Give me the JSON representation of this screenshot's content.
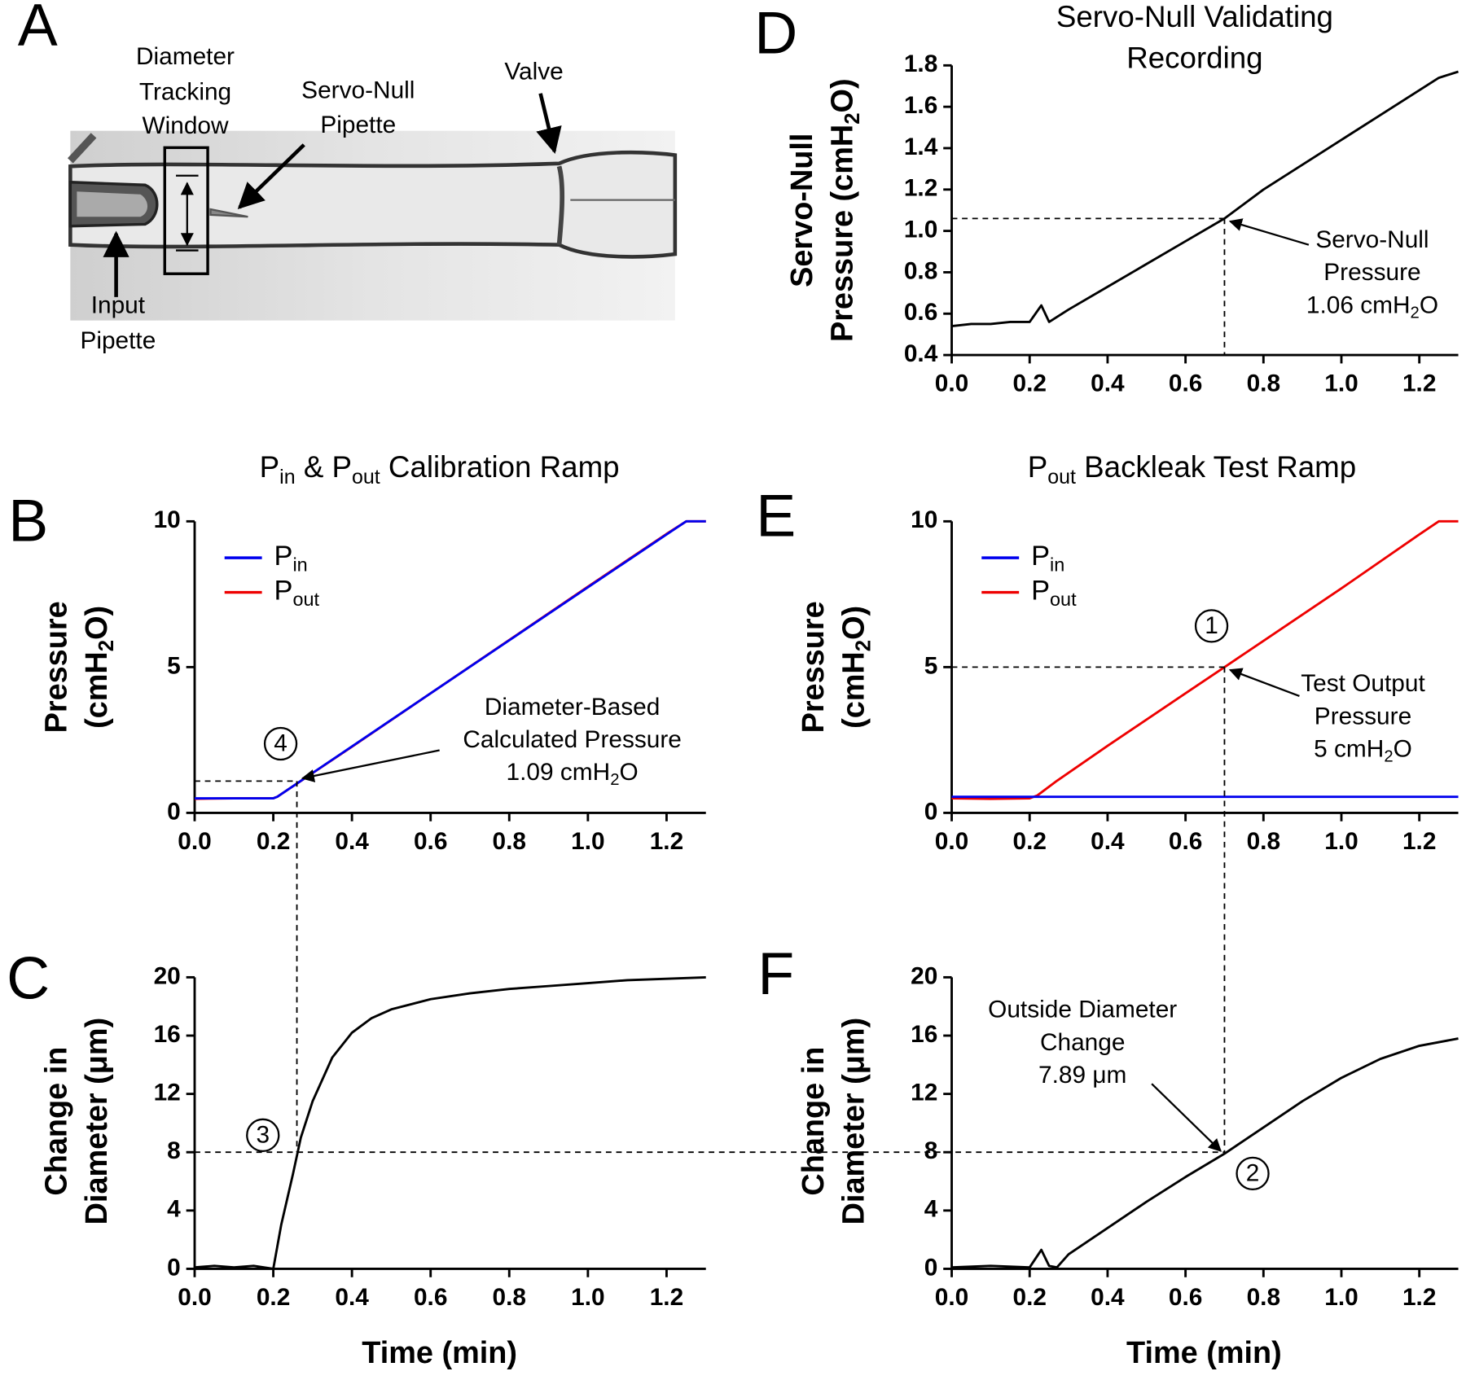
{
  "figure_a": {
    "panel_label": "A",
    "labels": [
      [
        "Diameter",
        "Tracking",
        "Window"
      ],
      [
        "Servo-Null",
        "Pipette"
      ],
      [
        "Valve"
      ],
      [
        "Input",
        "Pipette"
      ]
    ]
  },
  "chart_data": [
    {
      "type": "line",
      "panel_label": "B",
      "title": [
        [
          "P",
          {
            "sub": "in"
          },
          " & P",
          {
            "sub": "out"
          },
          " Calibration Ramp"
        ]
      ],
      "ylabel": [
        "Pressure",
        [
          "(cmH",
          {
            "sub": "2"
          },
          "O)"
        ]
      ],
      "x": [
        0,
        0.1,
        0.2,
        0.21,
        0.4,
        0.6,
        0.8,
        1.0,
        1.2,
        1.25,
        1.3
      ],
      "series": [
        {
          "name": [
            "P",
            {
              "sub": "in"
            }
          ],
          "color": "#0000ee",
          "values": [
            0.5,
            0.5,
            0.5,
            0.55,
            2.28,
            4.1,
            5.92,
            7.74,
            9.55,
            10,
            10
          ]
        },
        {
          "name": [
            "P",
            {
              "sub": "out"
            }
          ],
          "color": "#ee0000",
          "values": [
            0.48,
            0.5,
            0.5,
            0.55,
            2.27,
            4.1,
            5.93,
            7.76,
            9.57,
            10,
            10
          ]
        }
      ],
      "xlim": [
        0,
        1.3
      ],
      "xticks": [
        {
          "value": 0,
          "label": "0.0"
        },
        0.2,
        0.4,
        0.6,
        0.8,
        {
          "value": 1,
          "label": "1.0"
        },
        1.2
      ],
      "ylim": [
        0,
        10
      ],
      "yticks": [
        0,
        5,
        10
      ],
      "legend": "upper left",
      "annotation": {
        "text": [
          "Diameter-Based",
          "Calculated Pressure",
          [
            "1.09 cmH",
            {
              "sub": "2"
            },
            "O"
          ]
        ],
        "x": 0.26,
        "y": 1.09
      },
      "marker": "4"
    },
    {
      "type": "line",
      "panel_label": "C",
      "ylabel": [
        "Change in",
        "Diameter (μm)"
      ],
      "xlabel": "Time (min)",
      "x": [
        0,
        0.05,
        0.1,
        0.15,
        0.2,
        0.22,
        0.25,
        0.27,
        0.3,
        0.35,
        0.4,
        0.45,
        0.5,
        0.6,
        0.7,
        0.8,
        0.9,
        1.0,
        1.1,
        1.2,
        1.3
      ],
      "values": [
        0.1,
        0.2,
        0.1,
        0.2,
        0,
        3,
        6.5,
        9,
        11.5,
        14.5,
        16.2,
        17.2,
        17.8,
        18.5,
        18.9,
        19.2,
        19.4,
        19.6,
        19.8,
        19.9,
        20
      ],
      "color": "#000000",
      "xlim": [
        0,
        1.3
      ],
      "xticks": [
        {
          "value": 0,
          "label": "0.0"
        },
        0.2,
        0.4,
        0.6,
        0.8,
        {
          "value": 1,
          "label": "1.0"
        },
        1.2
      ],
      "ylim": [
        0,
        20
      ],
      "yticks": [
        0,
        4,
        8,
        12,
        16,
        20
      ],
      "annotation": {
        "x": 0.26,
        "y": 8
      },
      "marker": "3"
    },
    {
      "type": "line",
      "panel_label": "D",
      "title": [
        "Servo-Null Validating",
        "Recording"
      ],
      "ylabel": [
        "Servo-Null",
        [
          "Pressure (cmH",
          {
            "sub": "2"
          },
          "O)"
        ]
      ],
      "x": [
        0,
        0.05,
        0.1,
        0.15,
        0.2,
        0.23,
        0.25,
        0.3,
        0.4,
        0.5,
        0.6,
        0.7,
        0.8,
        0.9,
        1.0,
        1.1,
        1.2,
        1.25,
        1.3
      ],
      "values": [
        0.54,
        0.55,
        0.55,
        0.56,
        0.56,
        0.64,
        0.56,
        0.62,
        0.73,
        0.84,
        0.95,
        1.06,
        1.2,
        1.32,
        1.44,
        1.56,
        1.68,
        1.74,
        1.77
      ],
      "color": "#000000",
      "xlim": [
        0,
        1.3
      ],
      "xticks": [
        {
          "value": 0,
          "label": "0.0"
        },
        0.2,
        0.4,
        0.6,
        0.8,
        {
          "value": 1,
          "label": "1.0"
        },
        1.2
      ],
      "ylim": [
        0.4,
        1.8
      ],
      "yticks": [
        0.4,
        0.6,
        0.8,
        {
          "value": 1,
          "label": "1.0"
        },
        1.2,
        1.4,
        1.6,
        1.8
      ],
      "annotation": {
        "text": [
          "Servo-Null",
          "Pressure",
          [
            "1.06 cmH",
            {
              "sub": "2"
            },
            "O"
          ]
        ],
        "x": 0.7,
        "y": 1.06
      }
    },
    {
      "type": "line",
      "panel_label": "E",
      "title": [
        [
          "P",
          {
            "sub": "out"
          },
          " Backleak Test Ramp"
        ]
      ],
      "ylabel": [
        "Pressure",
        [
          "(cmH",
          {
            "sub": "2"
          },
          "O)"
        ]
      ],
      "x": [
        0,
        0.1,
        0.2,
        0.22,
        0.27,
        0.4,
        0.6,
        0.7,
        0.8,
        1.0,
        1.2,
        1.25,
        1.3
      ],
      "series": [
        {
          "name": [
            "P",
            {
              "sub": "in"
            }
          ],
          "color": "#0000ee",
          "values": [
            0.55,
            0.55,
            0.55,
            0.55,
            0.55,
            0.55,
            0.55,
            0.55,
            0.55,
            0.55,
            0.55,
            0.55,
            0.55
          ]
        },
        {
          "name": [
            "P",
            {
              "sub": "out"
            }
          ],
          "color": "#ee0000",
          "values": [
            0.5,
            0.48,
            0.5,
            0.6,
            1.1,
            2.3,
            4.1,
            5.0,
            5.9,
            7.7,
            9.55,
            10,
            10
          ]
        }
      ],
      "xlim": [
        0,
        1.3
      ],
      "xticks": [
        {
          "value": 0,
          "label": "0.0"
        },
        0.2,
        0.4,
        0.6,
        0.8,
        {
          "value": 1,
          "label": "1.0"
        },
        1.2
      ],
      "ylim": [
        0,
        10
      ],
      "yticks": [
        0,
        5,
        10
      ],
      "legend": "upper left",
      "annotation": {
        "text": [
          "Test Output",
          "Pressure",
          [
            "5 cmH",
            {
              "sub": "2"
            },
            "O"
          ]
        ],
        "x": 0.7,
        "y": 5
      },
      "marker": "1"
    },
    {
      "type": "line",
      "panel_label": "F",
      "ylabel": [
        "Change in",
        "Diameter (μm)"
      ],
      "xlabel": "Time (min)",
      "x": [
        0,
        0.1,
        0.2,
        0.23,
        0.25,
        0.27,
        0.3,
        0.4,
        0.5,
        0.6,
        0.7,
        0.8,
        0.9,
        1.0,
        1.1,
        1.2,
        1.3
      ],
      "values": [
        0.1,
        0.2,
        0.1,
        1.3,
        0.2,
        0.1,
        1,
        2.8,
        4.6,
        6.3,
        7.9,
        9.7,
        11.5,
        13.1,
        14.4,
        15.3,
        15.8
      ],
      "color": "#000000",
      "xlim": [
        0,
        1.3
      ],
      "xticks": [
        {
          "value": 0,
          "label": "0.0"
        },
        0.2,
        0.4,
        0.6,
        0.8,
        {
          "value": 1,
          "label": "1.0"
        },
        1.2
      ],
      "ylim": [
        0,
        20
      ],
      "yticks": [
        0,
        4,
        8,
        12,
        16,
        20
      ],
      "annotation": {
        "text": [
          "Outside Diameter",
          "Change",
          "7.89 μm"
        ],
        "x": 0.7,
        "y": 7.89
      },
      "marker": "2"
    }
  ]
}
